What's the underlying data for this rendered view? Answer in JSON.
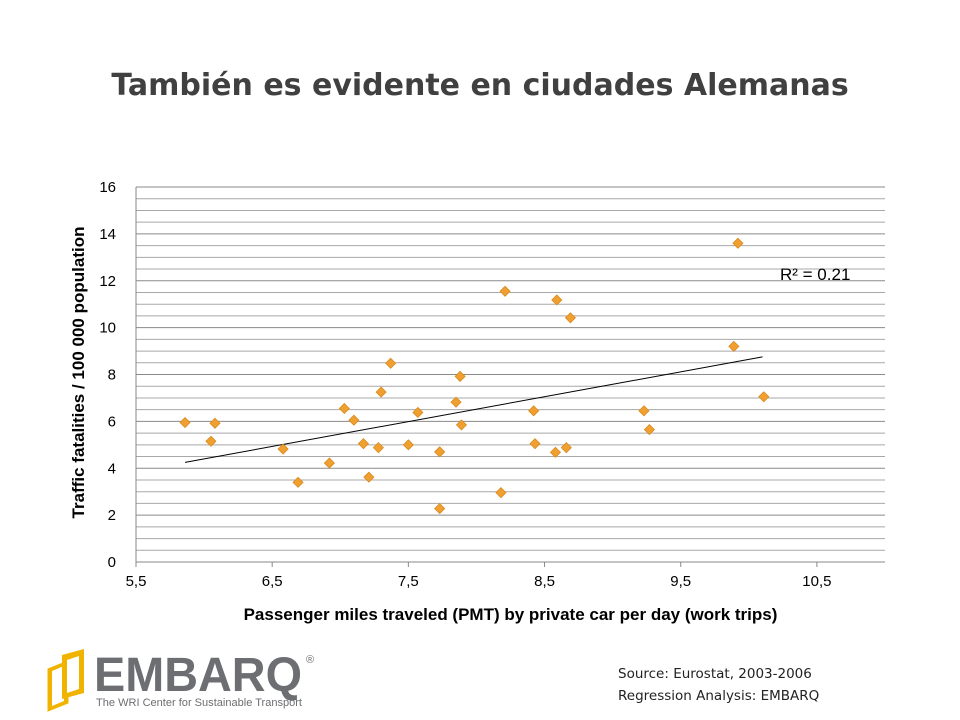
{
  "title": "También es evidente en ciudades Alemanas",
  "source_lines": [
    "Source: Eurostat, 2003-2006",
    "Regression Analysis: EMBARQ"
  ],
  "logo": {
    "name": "EMBARQ",
    "registered": "®",
    "tagline": "The WRI Center for Sustainable Transport",
    "brand_color": "#6d6e71",
    "accent": "#f0b400"
  },
  "chart_data": {
    "type": "scatter",
    "xlabel": "Passenger miles traveled (PMT) by private car per day (work trips)",
    "ylabel": "Traffic fatalities / 100 000 population",
    "xlim": [
      5.5,
      11.0
    ],
    "ylim": [
      0,
      16
    ],
    "x_ticks": [
      5.5,
      6.5,
      7.5,
      8.5,
      9.5,
      10.5
    ],
    "x_tick_labels": [
      "5,5",
      "6,5",
      "7,5",
      "8,5",
      "9,5",
      "10,5"
    ],
    "y_ticks": [
      0,
      2,
      4,
      6,
      8,
      10,
      12,
      14,
      16
    ],
    "y_tick_labels": [
      "0",
      "2",
      "4",
      "6",
      "8",
      "10",
      "12",
      "14",
      "16"
    ],
    "grid": "horizontal minor lines every 0.5",
    "marker": "diamond",
    "marker_color": "#f0a030",
    "points": [
      {
        "x": 5.86,
        "y": 5.95
      },
      {
        "x": 6.05,
        "y": 5.15
      },
      {
        "x": 6.08,
        "y": 5.92
      },
      {
        "x": 6.58,
        "y": 4.82
      },
      {
        "x": 6.69,
        "y": 3.4
      },
      {
        "x": 6.92,
        "y": 4.22
      },
      {
        "x": 7.03,
        "y": 6.55
      },
      {
        "x": 7.1,
        "y": 6.05
      },
      {
        "x": 7.17,
        "y": 5.05
      },
      {
        "x": 7.21,
        "y": 3.62
      },
      {
        "x": 7.28,
        "y": 4.88
      },
      {
        "x": 7.3,
        "y": 7.25
      },
      {
        "x": 7.37,
        "y": 8.48
      },
      {
        "x": 7.5,
        "y": 5.0
      },
      {
        "x": 7.57,
        "y": 6.38
      },
      {
        "x": 7.73,
        "y": 4.7
      },
      {
        "x": 7.73,
        "y": 2.28
      },
      {
        "x": 7.85,
        "y": 6.82
      },
      {
        "x": 7.88,
        "y": 7.92
      },
      {
        "x": 7.89,
        "y": 5.85
      },
      {
        "x": 8.18,
        "y": 2.96
      },
      {
        "x": 8.21,
        "y": 11.55
      },
      {
        "x": 8.42,
        "y": 6.45
      },
      {
        "x": 8.43,
        "y": 5.05
      },
      {
        "x": 8.58,
        "y": 4.68
      },
      {
        "x": 8.59,
        "y": 11.18
      },
      {
        "x": 8.66,
        "y": 4.88
      },
      {
        "x": 8.69,
        "y": 10.42
      },
      {
        "x": 9.23,
        "y": 6.45
      },
      {
        "x": 9.27,
        "y": 5.65
      },
      {
        "x": 9.89,
        "y": 9.2
      },
      {
        "x": 9.92,
        "y": 13.6
      },
      {
        "x": 10.11,
        "y": 7.05
      }
    ],
    "trendline": {
      "x": [
        5.86,
        10.1
      ],
      "y": [
        4.25,
        8.75
      ]
    },
    "annotation": "R² = 0.21"
  }
}
